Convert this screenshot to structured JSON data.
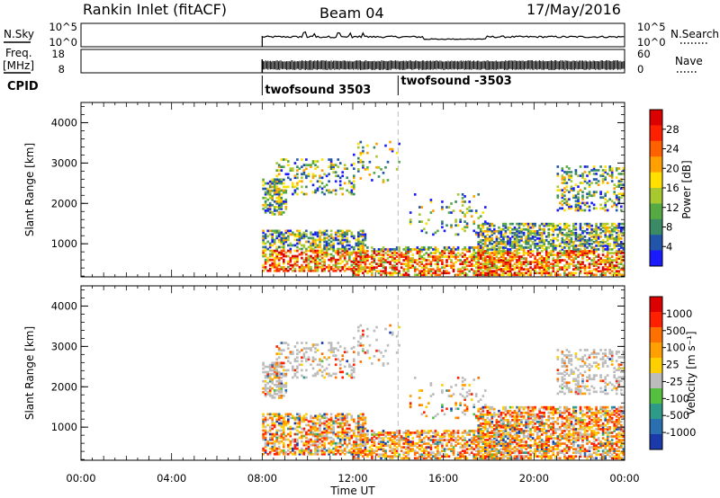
{
  "header": {
    "title": "Rankin Inlet (fitACF)",
    "beam": "Beam 04",
    "date": "17/May/2016"
  },
  "info_panels": {
    "nsky_label": "N.Sky",
    "nsky_ticks": [
      "10^5",
      "10^0"
    ],
    "nsearch_ticks": [
      "10^5",
      "10^0"
    ],
    "nsearch_label": "N.Search",
    "freq_label": "Freq.",
    "freq_unit": "[MHz]",
    "freq_ticks": [
      "18",
      "8"
    ],
    "nave_ticks": [
      "60",
      "0"
    ],
    "nave_label": "Nave",
    "cpid_label": "CPID",
    "cpid_segments": [
      {
        "label": "twofsound 3503",
        "start_hour": 8.0
      },
      {
        "label": "twofsound -3503",
        "start_hour": 14.0
      }
    ]
  },
  "chart_data": [
    {
      "type": "heatmap",
      "name": "power",
      "ylabel": "Slant Range [km]",
      "xlabel": "",
      "xlim": [
        0,
        24
      ],
      "ylim": [
        180,
        4500
      ],
      "yticks": [
        "1000",
        "2000",
        "3000",
        "4000"
      ],
      "colorbar_label": "Power [dB]",
      "colorbar_ticks": [
        "4",
        "8",
        "12",
        "16",
        "20",
        "24",
        "28"
      ],
      "colorbar_colors": [
        "#1a1aff",
        "#2255aa",
        "#3a8a66",
        "#55aa44",
        "#a8c830",
        "#ffe000",
        "#ffa000",
        "#ff6000",
        "#ff2000",
        "#dd0000"
      ],
      "data_start_hour": 8.0,
      "marker_hour": 14.0
    },
    {
      "type": "heatmap",
      "name": "velocity",
      "ylabel": "Slant Range [km]",
      "xlabel": "Time UT",
      "xlim": [
        0,
        24
      ],
      "ylim": [
        180,
        4500
      ],
      "yticks": [
        "1000",
        "2000",
        "3000",
        "4000"
      ],
      "xticks": [
        "00:00",
        "04:00",
        "08:00",
        "12:00",
        "16:00",
        "20:00",
        "00:00"
      ],
      "colorbar_label": "Velocity [m s⁻¹]",
      "colorbar_ticks": [
        "1000",
        "500",
        "100",
        "25",
        "-25",
        "-100",
        "-500",
        "-1000"
      ],
      "colorbar_colors": [
        "#1a3aaa",
        "#2a70b0",
        "#2e9a88",
        "#55c040",
        "#bcbcbc",
        "#ffd000",
        "#ffa000",
        "#ff7000",
        "#ff2000",
        "#dd0000"
      ],
      "data_start_hour": 8.0,
      "marker_hour": 14.0
    }
  ]
}
